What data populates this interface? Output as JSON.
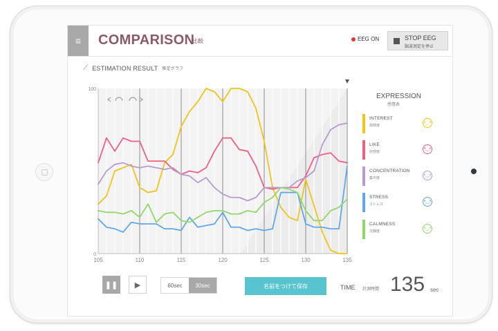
{
  "header": {
    "title": "COMPARISON",
    "title_sub": "比較",
    "eeg_status": "EEG ON",
    "stop_label": "STOP EEG",
    "stop_sub": "脳波測定を停止"
  },
  "section": {
    "title": "ESTIMATION RESULT",
    "title_sub": "推定グラフ"
  },
  "expression": {
    "title": "EXPRESSION",
    "subtitle": "感情表",
    "items": [
      {
        "label": "INTEREST",
        "sub": "興味度",
        "color": "#f0c419",
        "icon": "smiley-face-icon"
      },
      {
        "label": "LIKE",
        "sub": "好感度",
        "color": "#ef5f84",
        "icon": "smiley-face-icon"
      },
      {
        "label": "CONCENTRATION",
        "sub": "集中度",
        "color": "#b79ad2",
        "icon": "smiley-face-icon"
      },
      {
        "label": "STRESS",
        "sub": "ストレス",
        "color": "#5fa7e8",
        "icon": "smiley-face-icon"
      },
      {
        "label": "CALMNESS",
        "sub": "沈静度",
        "color": "#8fd86a",
        "icon": "smiley-face-icon"
      }
    ]
  },
  "controls": {
    "range_60": "60sec",
    "range_30": "30sec",
    "save_label": "名前をつけて保存",
    "time_label": "TIME",
    "time_sub": "計測時間",
    "time_value": "135",
    "time_unit": "sec"
  },
  "chart_data": {
    "type": "line",
    "x": [
      105,
      106,
      107,
      108,
      109,
      110,
      111,
      112,
      113,
      114,
      115,
      116,
      117,
      118,
      119,
      120,
      121,
      122,
      123,
      124,
      125,
      126,
      127,
      128,
      129,
      130,
      131,
      132,
      133,
      134,
      135
    ],
    "xticks": [
      105,
      110,
      115,
      120,
      125,
      130,
      135
    ],
    "yticks": [
      0,
      100
    ],
    "xlim": [
      105,
      135
    ],
    "ylim": [
      0,
      100
    ],
    "grid": true,
    "series": [
      {
        "name": "INTEREST",
        "color": "#f0c419",
        "values": [
          30,
          35,
          50,
          52,
          54,
          40,
          37,
          38,
          55,
          60,
          77,
          86,
          92,
          100,
          98,
          92,
          100,
          100,
          98,
          88,
          68,
          40,
          28,
          22,
          20,
          45,
          29,
          13,
          2,
          0,
          0
        ]
      },
      {
        "name": "LIKE",
        "color": "#ef5f84",
        "values": [
          55,
          70,
          62,
          70,
          68,
          68,
          56,
          56,
          56,
          51,
          48,
          50,
          49,
          52,
          62,
          70,
          70,
          63,
          62,
          53,
          40,
          39,
          40,
          40,
          40,
          47,
          58,
          60,
          61,
          56,
          55
        ]
      },
      {
        "name": "CONCENTRATION",
        "color": "#b79ad2",
        "values": [
          42,
          50,
          54,
          55,
          53,
          52,
          53,
          52,
          51,
          52,
          48,
          47,
          43,
          46,
          40,
          36,
          34,
          34,
          32,
          34,
          40,
          40,
          40,
          40,
          44,
          46,
          50,
          66,
          75,
          78,
          79
        ]
      },
      {
        "name": "STRESS",
        "color": "#5fa7e8",
        "values": [
          21,
          16,
          15,
          13,
          19,
          18,
          18,
          18,
          15,
          15,
          14,
          22,
          16,
          17,
          18,
          25,
          16,
          16,
          14,
          15,
          14,
          15,
          37,
          37,
          37,
          18,
          16,
          16,
          15,
          15,
          53
        ]
      },
      {
        "name": "CALMNESS",
        "color": "#8fd86a",
        "values": [
          26,
          25,
          25,
          24,
          26,
          22,
          30,
          19,
          24,
          25,
          20,
          19,
          22,
          25,
          26,
          26,
          24,
          24,
          26,
          25,
          31,
          34,
          40,
          39,
          37,
          26,
          20,
          20,
          26,
          28,
          33
        ]
      }
    ]
  }
}
